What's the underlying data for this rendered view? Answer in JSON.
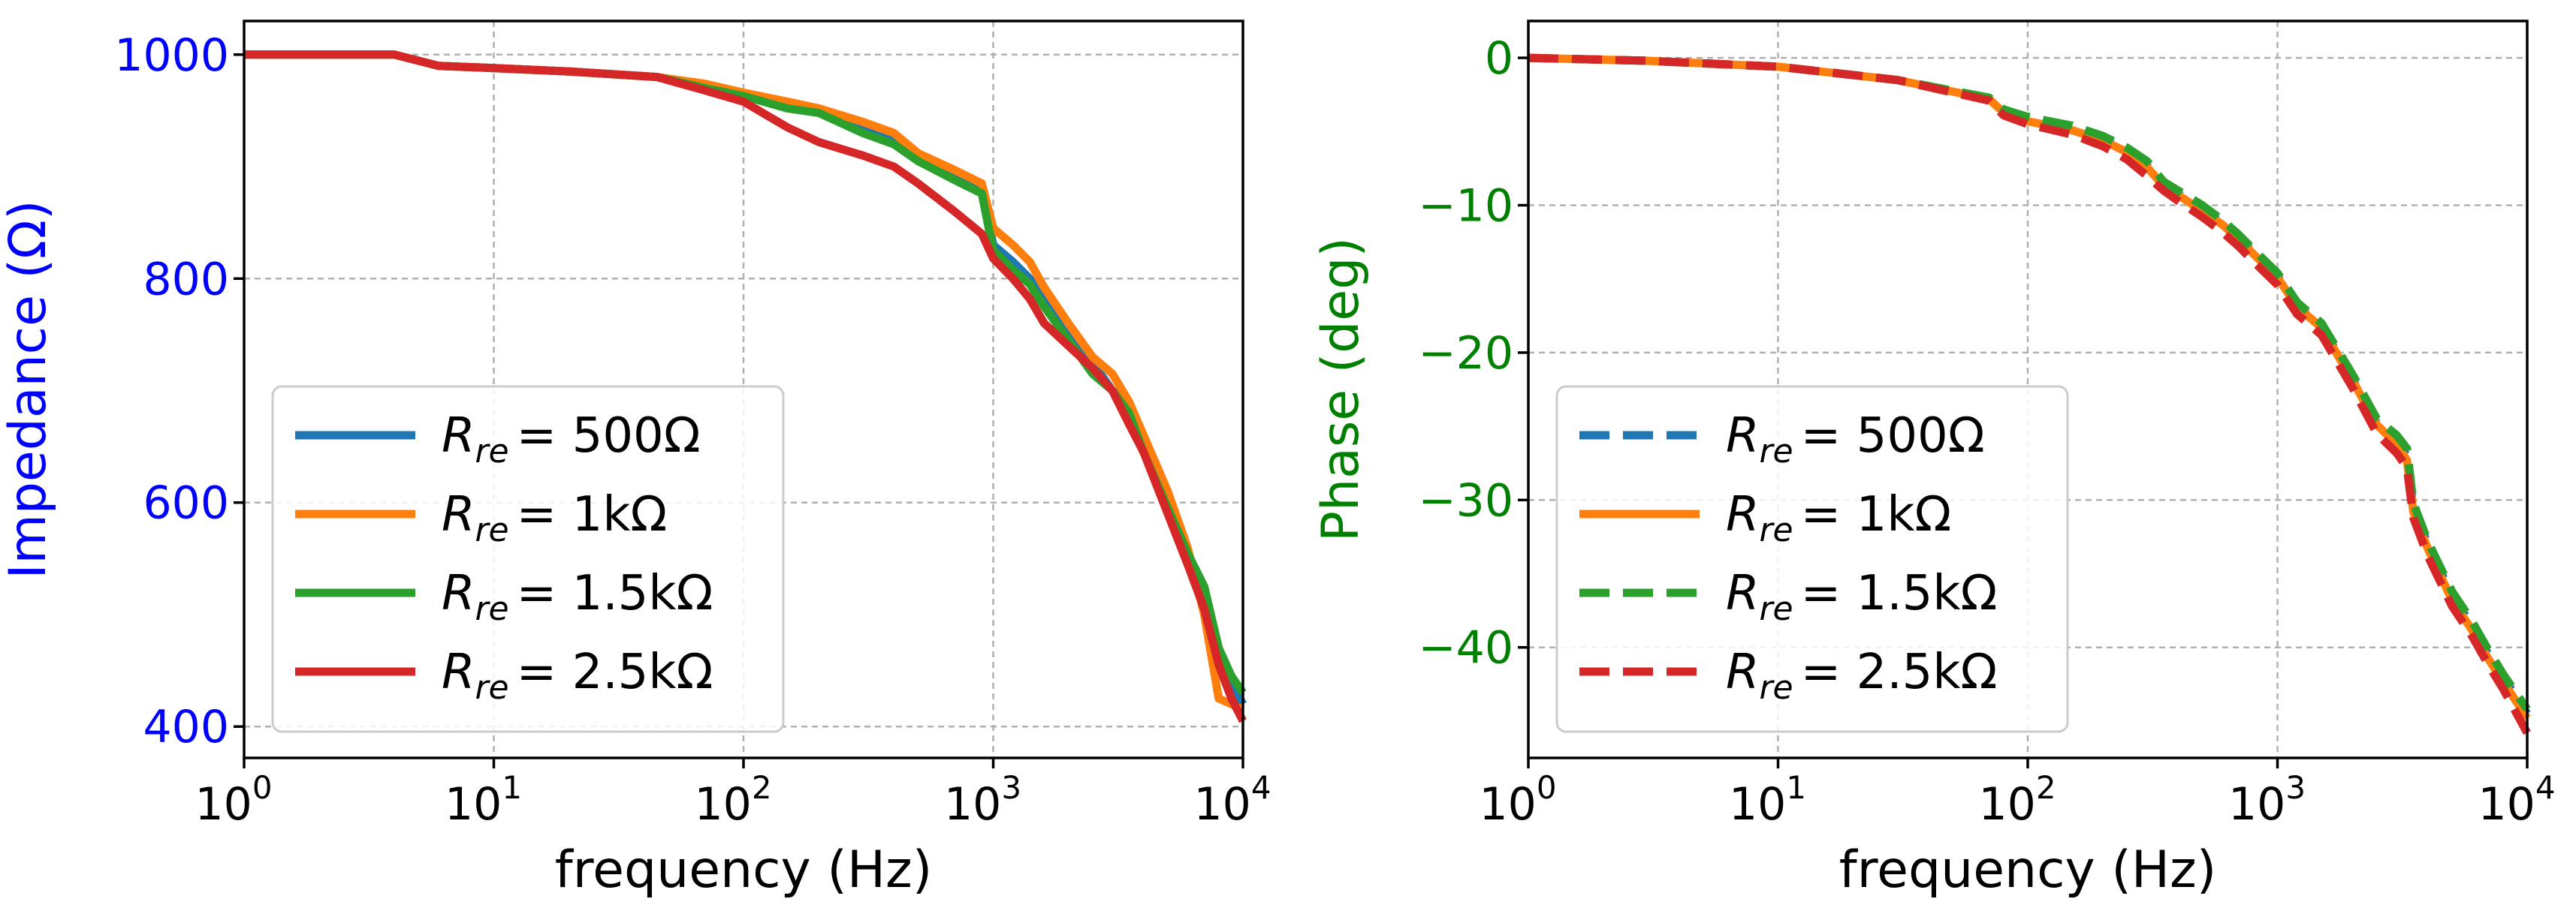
{
  "chart_data": [
    {
      "type": "line",
      "xscale": "log",
      "xlim": [
        1,
        10000
      ],
      "ylim": [
        372,
        1030
      ],
      "xlabel": "frequency (Hz)",
      "ylabel": "Impedance (Ω)",
      "ylabel_color": "#0000ff",
      "ytick_color": "#0000ff",
      "yticks": [
        400,
        600,
        800,
        1000
      ],
      "xticks": [
        {
          "value": 1,
          "base": "10",
          "exp": "0"
        },
        {
          "value": 10,
          "base": "10",
          "exp": "1"
        },
        {
          "value": 100,
          "base": "10",
          "exp": "2"
        },
        {
          "value": 1000,
          "base": "10",
          "exp": "3"
        },
        {
          "value": 10000,
          "base": "10",
          "exp": "4"
        }
      ],
      "grid": true,
      "legend_position": "lower-left",
      "series": [
        {
          "name": "R_re = 500Ω",
          "sub": "re",
          "rhs": "= 500Ω",
          "color": "#1f77b4",
          "dash": "solid",
          "x": [
            1,
            4,
            6,
            10,
            20,
            45,
            70,
            100,
            150,
            200,
            300,
            400,
            500,
            700,
            900,
            1000,
            1200,
            1400,
            1600,
            2000,
            2500,
            3000,
            3500,
            4000,
            5000,
            6000,
            7000,
            8000,
            9000,
            10000
          ],
          "y": [
            1000,
            1000,
            990,
            988,
            985,
            980,
            972,
            965,
            955,
            950,
            935,
            925,
            905,
            890,
            880,
            830,
            815,
            800,
            780,
            750,
            725,
            700,
            690,
            650,
            600,
            555,
            520,
            470,
            440,
            420
          ]
        },
        {
          "name": "R_re = 1kΩ",
          "sub": "re",
          "rhs": "= 1kΩ",
          "color": "#ff7f0e",
          "dash": "solid",
          "x": [
            1,
            4,
            6,
            10,
            20,
            45,
            70,
            100,
            150,
            200,
            300,
            400,
            500,
            700,
            900,
            1000,
            1200,
            1400,
            1600,
            2000,
            2500,
            3000,
            3500,
            4000,
            5000,
            6000,
            7000,
            8000,
            9000,
            10000
          ],
          "y": [
            1000,
            1000,
            990,
            988,
            985,
            980,
            974,
            966,
            958,
            952,
            940,
            930,
            912,
            897,
            885,
            845,
            830,
            815,
            792,
            760,
            730,
            715,
            690,
            660,
            610,
            560,
            500,
            425,
            420,
            415
          ]
        },
        {
          "name": "R_re = 1.5kΩ",
          "sub": "re",
          "rhs": "= 1.5kΩ",
          "color": "#2ca02c",
          "dash": "solid",
          "x": [
            1,
            4,
            6,
            10,
            20,
            45,
            70,
            100,
            150,
            200,
            300,
            400,
            500,
            700,
            900,
            1000,
            1200,
            1400,
            1600,
            2000,
            2500,
            3000,
            3500,
            4000,
            5000,
            6000,
            7000,
            8000,
            9000,
            10000
          ],
          "y": [
            1000,
            1000,
            990,
            988,
            985,
            980,
            970,
            963,
            952,
            948,
            930,
            920,
            905,
            888,
            876,
            825,
            808,
            795,
            775,
            745,
            715,
            700,
            680,
            645,
            595,
            555,
            525,
            470,
            445,
            430
          ]
        },
        {
          "name": "R_re = 2.5kΩ",
          "sub": "re",
          "rhs": "= 2.5kΩ",
          "color": "#d62728",
          "dash": "solid",
          "x": [
            1,
            4,
            6,
            10,
            20,
            45,
            70,
            100,
            150,
            200,
            300,
            400,
            500,
            700,
            900,
            1000,
            1200,
            1400,
            1600,
            2000,
            2500,
            3000,
            3500,
            4000,
            5000,
            6000,
            7000,
            8000,
            9000,
            10000
          ],
          "y": [
            1000,
            1000,
            990,
            988,
            985,
            980,
            968,
            958,
            935,
            922,
            910,
            900,
            885,
            860,
            840,
            818,
            800,
            782,
            760,
            740,
            720,
            700,
            670,
            645,
            590,
            545,
            505,
            455,
            425,
            405
          ]
        }
      ]
    },
    {
      "type": "line",
      "xscale": "log",
      "xlim": [
        1,
        10000
      ],
      "ylim": [
        -47.5,
        2.5
      ],
      "xlabel": "frequency (Hz)",
      "ylabel": "Phase (deg)",
      "ylabel_color": "#008000",
      "ytick_color": "#008000",
      "yticks": [
        0,
        -10,
        -20,
        -30,
        -40
      ],
      "ytick_labels": [
        "0",
        "−10",
        "−20",
        "−30",
        "−40"
      ],
      "xticks": [
        {
          "value": 1,
          "base": "10",
          "exp": "0"
        },
        {
          "value": 10,
          "base": "10",
          "exp": "1"
        },
        {
          "value": 100,
          "base": "10",
          "exp": "2"
        },
        {
          "value": 1000,
          "base": "10",
          "exp": "3"
        },
        {
          "value": 10000,
          "base": "10",
          "exp": "4"
        }
      ],
      "grid": true,
      "legend_position": "lower-left",
      "series": [
        {
          "name": "R_re = 500Ω",
          "sub": "re",
          "rhs": "= 500Ω",
          "color": "#1f77b4",
          "dash": "dashed",
          "x": [
            1,
            3,
            10,
            30,
            70,
            80,
            100,
            150,
            200,
            250,
            300,
            350,
            400,
            500,
            600,
            700,
            800,
            1000,
            1200,
            1500,
            2000,
            2500,
            3000,
            3300,
            3500,
            4000,
            5000,
            6000,
            7000,
            8000,
            10000
          ],
          "y": [
            0,
            -0.2,
            -0.6,
            -1.5,
            -2.8,
            -3.6,
            -4.2,
            -4.8,
            -5.5,
            -6.3,
            -7.3,
            -8.6,
            -9.2,
            -10.3,
            -11.2,
            -12.2,
            -13.2,
            -14.8,
            -16.8,
            -18.2,
            -21.8,
            -24.8,
            -26.0,
            -27.0,
            -30.5,
            -33.0,
            -36.5,
            -38.5,
            -40.5,
            -42.0,
            -44.5
          ]
        },
        {
          "name": "R_re = 1kΩ",
          "sub": "re",
          "rhs": "= 1kΩ",
          "color": "#ff7f0e",
          "dash": "solid",
          "x": [
            1,
            3,
            10,
            30,
            70,
            80,
            100,
            150,
            200,
            250,
            300,
            350,
            400,
            500,
            600,
            700,
            800,
            1000,
            1200,
            1500,
            2000,
            2500,
            3000,
            3300,
            3500,
            4000,
            5000,
            6000,
            7000,
            8000,
            10000
          ],
          "y": [
            0,
            -0.2,
            -0.6,
            -1.5,
            -2.8,
            -3.7,
            -4.3,
            -4.9,
            -5.6,
            -6.4,
            -7.4,
            -8.7,
            -9.3,
            -10.4,
            -11.3,
            -12.3,
            -13.3,
            -14.9,
            -16.9,
            -18.3,
            -21.9,
            -24.9,
            -26.2,
            -27.3,
            -30.8,
            -33.3,
            -36.8,
            -38.8,
            -40.8,
            -42.3,
            -44.8
          ]
        },
        {
          "name": "R_re = 1.5kΩ",
          "sub": "re",
          "rhs": "= 1.5kΩ",
          "color": "#2ca02c",
          "dash": "dashed",
          "x": [
            1,
            3,
            10,
            30,
            70,
            80,
            100,
            150,
            200,
            250,
            300,
            350,
            400,
            500,
            600,
            700,
            800,
            1000,
            1200,
            1500,
            2000,
            2500,
            3000,
            3300,
            3500,
            4000,
            5000,
            6000,
            7000,
            8000,
            10000
          ],
          "y": [
            0,
            -0.2,
            -0.6,
            -1.5,
            -2.7,
            -3.5,
            -4.0,
            -4.6,
            -5.3,
            -6.1,
            -7.0,
            -8.4,
            -9.0,
            -10.0,
            -11.0,
            -12.0,
            -13.0,
            -14.6,
            -16.6,
            -18.0,
            -21.5,
            -24.5,
            -25.6,
            -26.5,
            -30.2,
            -32.8,
            -36.2,
            -38.2,
            -40.2,
            -41.8,
            -44.2
          ]
        },
        {
          "name": "R_re = 2.5kΩ",
          "sub": "re",
          "rhs": "= 2.5kΩ",
          "color": "#d62728",
          "dash": "dashed",
          "x": [
            1,
            3,
            10,
            30,
            70,
            80,
            100,
            150,
            200,
            250,
            300,
            350,
            400,
            500,
            600,
            700,
            800,
            1000,
            1200,
            1500,
            2000,
            2500,
            3000,
            3300,
            3500,
            4000,
            5000,
            6000,
            7000,
            8000,
            10000
          ],
          "y": [
            0,
            -0.2,
            -0.6,
            -1.5,
            -2.9,
            -3.9,
            -4.5,
            -5.2,
            -6.0,
            -6.9,
            -8.0,
            -9.0,
            -9.7,
            -10.8,
            -11.8,
            -12.8,
            -13.8,
            -15.4,
            -17.4,
            -18.8,
            -22.4,
            -25.5,
            -26.8,
            -27.8,
            -31.2,
            -33.8,
            -37.2,
            -39.2,
            -41.2,
            -42.8,
            -45.8
          ]
        }
      ]
    }
  ]
}
